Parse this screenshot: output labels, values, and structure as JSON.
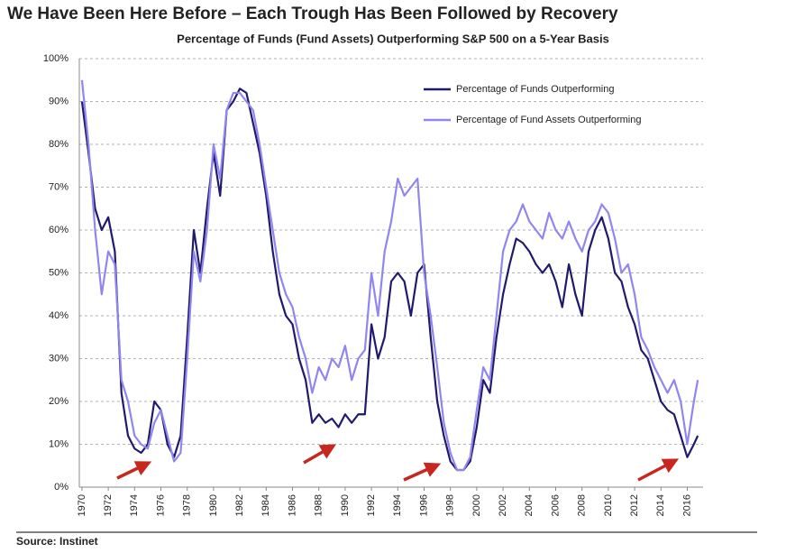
{
  "chart_data": {
    "type": "line",
    "title": "We Have Been Here Before – Each Trough Has Been Followed by Recovery",
    "subtitle": "Percentage of Funds (Fund Assets) Outperforming S&P 500 on a 5-Year Basis",
    "source": "Source:  Instinet",
    "x": [
      1970,
      1970.5,
      1971,
      1971.5,
      1972,
      1972.5,
      1973,
      1973.5,
      1974,
      1974.5,
      1975,
      1975.5,
      1976,
      1976.5,
      1977,
      1977.5,
      1978,
      1978.5,
      1979,
      1979.5,
      1980,
      1980.5,
      1981,
      1981.5,
      1982,
      1982.5,
      1983,
      1983.5,
      1984,
      1984.5,
      1985,
      1985.5,
      1986,
      1986.5,
      1987,
      1987.5,
      1988,
      1988.5,
      1989,
      1989.5,
      1990,
      1990.5,
      1991,
      1991.5,
      1992,
      1992.5,
      1993,
      1993.5,
      1994,
      1994.5,
      1995,
      1995.5,
      1996,
      1996.5,
      1997,
      1997.5,
      1998,
      1998.5,
      1999,
      1999.5,
      2000,
      2000.5,
      2001,
      2001.5,
      2002,
      2002.5,
      2003,
      2003.5,
      2004,
      2004.5,
      2005,
      2005.5,
      2006,
      2006.5,
      2007,
      2007.5,
      2008,
      2008.5,
      2009,
      2009.5,
      2010,
      2010.5,
      2011,
      2011.5,
      2012,
      2012.5,
      2013,
      2013.5,
      2014,
      2014.5,
      2015,
      2015.5,
      2016,
      2016.5,
      2016.8
    ],
    "series": [
      {
        "name": "Percentage of Funds Outperforming",
        "color": "#1f1a6e",
        "values": [
          90,
          78,
          65,
          60,
          63,
          55,
          22,
          12,
          9,
          8,
          10,
          20,
          18,
          10,
          7,
          12,
          35,
          60,
          50,
          65,
          78,
          68,
          88,
          90,
          93,
          92,
          85,
          78,
          68,
          55,
          45,
          40,
          38,
          30,
          25,
          15,
          17,
          15,
          16,
          14,
          17,
          15,
          17,
          17,
          38,
          30,
          35,
          48,
          50,
          48,
          40,
          50,
          52,
          35,
          20,
          12,
          6,
          4,
          4,
          6,
          14,
          25,
          22,
          35,
          45,
          52,
          58,
          57,
          55,
          52,
          50,
          52,
          48,
          42,
          52,
          45,
          40,
          55,
          60,
          63,
          58,
          50,
          48,
          42,
          38,
          32,
          30,
          25,
          20,
          18,
          17,
          12,
          7,
          10,
          12
        ]
      },
      {
        "name": "Percentage of Fund Assets Outperforming",
        "color": "#8f86f0",
        "values": [
          95,
          80,
          60,
          45,
          55,
          52,
          25,
          20,
          12,
          10,
          9,
          15,
          18,
          12,
          6,
          8,
          30,
          55,
          48,
          60,
          80,
          72,
          88,
          92,
          92,
          90,
          88,
          80,
          70,
          60,
          50,
          45,
          42,
          35,
          30,
          22,
          28,
          25,
          30,
          28,
          33,
          25,
          30,
          32,
          50,
          40,
          55,
          62,
          72,
          68,
          70,
          72,
          50,
          40,
          28,
          15,
          8,
          4,
          4,
          7,
          18,
          28,
          25,
          40,
          55,
          60,
          62,
          66,
          62,
          60,
          58,
          64,
          60,
          58,
          62,
          58,
          55,
          60,
          62,
          66,
          64,
          58,
          50,
          52,
          45,
          35,
          32,
          28,
          25,
          22,
          25,
          20,
          10,
          20,
          25
        ]
      }
    ],
    "xlim": [
      1969.8,
      2017.2
    ],
    "xticks": [
      1970,
      1972,
      1974,
      1976,
      1978,
      1980,
      1982,
      1984,
      1986,
      1988,
      1990,
      1992,
      1994,
      1996,
      1998,
      2000,
      2002,
      2004,
      2006,
      2008,
      2010,
      2012,
      2014,
      2016
    ],
    "ylim": [
      0,
      100
    ],
    "yticks": [
      {
        "value": 0,
        "label": "0%"
      },
      {
        "value": 10,
        "label": "10%"
      },
      {
        "value": 20,
        "label": "20%"
      },
      {
        "value": 30,
        "label": "30%"
      },
      {
        "value": 40,
        "label": "40%"
      },
      {
        "value": 50,
        "label": "50%"
      },
      {
        "value": 60,
        "label": "60%"
      },
      {
        "value": 70,
        "label": "70%"
      },
      {
        "value": 80,
        "label": "80%"
      },
      {
        "value": 90,
        "label": "90%"
      },
      {
        "value": 100,
        "label": "100%"
      }
    ],
    "grid": true,
    "legend": "upper right"
  }
}
